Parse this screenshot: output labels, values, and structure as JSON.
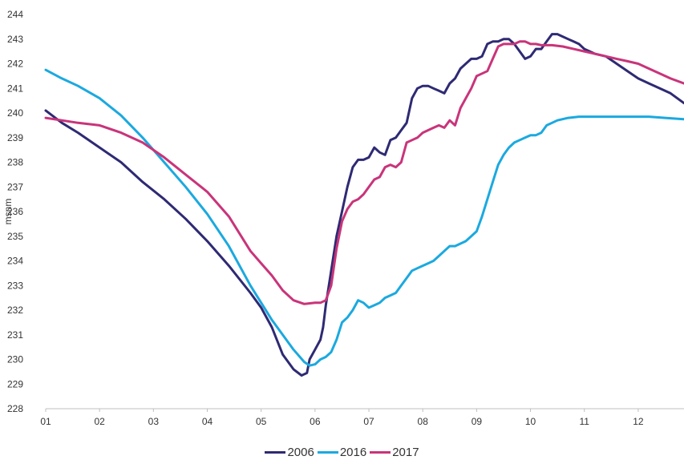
{
  "chart_data": {
    "type": "line",
    "ylabel": "msnm",
    "xlabel": "",
    "ylim": [
      228,
      244
    ],
    "xlim": [
      1,
      12.85
    ],
    "yticks": [
      "228",
      "229",
      "230",
      "231",
      "232",
      "233",
      "234",
      "235",
      "236",
      "237",
      "238",
      "239",
      "240",
      "241",
      "242",
      "243",
      "244"
    ],
    "xticks": [
      "01",
      "02",
      "03",
      "04",
      "05",
      "06",
      "07",
      "08",
      "09",
      "10",
      "11",
      "12"
    ],
    "grid": false,
    "legend_position": "bottom-center",
    "series": [
      {
        "name": "2006",
        "color": "#2e2a73",
        "x": [
          1.0,
          1.3,
          1.6,
          2.0,
          2.4,
          2.8,
          3.2,
          3.6,
          4.0,
          4.4,
          4.8,
          5.0,
          5.2,
          5.4,
          5.6,
          5.75,
          5.85,
          5.9,
          6.0,
          6.1,
          6.15,
          6.2,
          6.3,
          6.4,
          6.5,
          6.6,
          6.7,
          6.8,
          6.9,
          7.0,
          7.1,
          7.2,
          7.3,
          7.4,
          7.5,
          7.6,
          7.7,
          7.8,
          7.9,
          8.0,
          8.1,
          8.2,
          8.3,
          8.4,
          8.5,
          8.6,
          8.7,
          8.8,
          8.9,
          9.0,
          9.1,
          9.2,
          9.3,
          9.4,
          9.5,
          9.6,
          9.7,
          9.8,
          9.9,
          10.0,
          10.1,
          10.2,
          10.3,
          10.4,
          10.5,
          10.6,
          10.7,
          10.8,
          10.9,
          11.0,
          11.2,
          11.4,
          11.6,
          11.8,
          12.0,
          12.2,
          12.4,
          12.6,
          12.85
        ],
        "values": [
          240.1,
          239.6,
          239.2,
          238.6,
          238.0,
          237.2,
          236.5,
          235.7,
          234.8,
          233.8,
          232.7,
          232.1,
          231.3,
          230.2,
          229.6,
          229.35,
          229.45,
          230.0,
          230.4,
          230.8,
          231.3,
          232.2,
          233.6,
          235.0,
          236.0,
          237.0,
          237.8,
          238.1,
          238.1,
          238.2,
          238.6,
          238.4,
          238.3,
          238.9,
          239.0,
          239.3,
          239.6,
          240.6,
          241.0,
          241.1,
          241.1,
          241.0,
          240.9,
          240.8,
          241.2,
          241.4,
          241.8,
          242.0,
          242.2,
          242.2,
          242.3,
          242.8,
          242.9,
          242.9,
          243.0,
          243.0,
          242.8,
          242.5,
          242.2,
          242.3,
          242.6,
          242.6,
          242.9,
          243.2,
          243.2,
          243.1,
          243.0,
          242.9,
          242.8,
          242.6,
          242.4,
          242.3,
          242.0,
          241.7,
          241.4,
          241.2,
          241.0,
          240.8,
          240.4
        ]
      },
      {
        "name": "2016",
        "color": "#1ba9df",
        "x": [
          1.0,
          1.3,
          1.6,
          2.0,
          2.4,
          2.8,
          3.2,
          3.6,
          4.0,
          4.4,
          4.8,
          5.2,
          5.6,
          5.8,
          5.9,
          6.0,
          6.1,
          6.2,
          6.3,
          6.4,
          6.5,
          6.6,
          6.7,
          6.8,
          6.9,
          7.0,
          7.1,
          7.2,
          7.3,
          7.4,
          7.5,
          7.6,
          7.7,
          7.8,
          7.9,
          8.0,
          8.1,
          8.2,
          8.3,
          8.4,
          8.5,
          8.6,
          8.7,
          8.8,
          8.9,
          9.0,
          9.1,
          9.2,
          9.3,
          9.4,
          9.5,
          9.6,
          9.7,
          9.8,
          9.9,
          10.0,
          10.1,
          10.2,
          10.3,
          10.4,
          10.5,
          10.7,
          10.9,
          11.1,
          11.3,
          11.6,
          11.9,
          12.2,
          12.5,
          12.85
        ],
        "values": [
          241.75,
          241.4,
          241.1,
          240.6,
          239.9,
          239.0,
          238.0,
          237.0,
          235.9,
          234.6,
          233.0,
          231.6,
          230.4,
          229.9,
          229.75,
          229.8,
          230.0,
          230.1,
          230.3,
          230.8,
          231.5,
          231.7,
          232.0,
          232.4,
          232.3,
          232.1,
          232.2,
          232.3,
          232.5,
          232.6,
          232.7,
          233.0,
          233.3,
          233.6,
          233.7,
          233.8,
          233.9,
          234.0,
          234.2,
          234.4,
          234.6,
          234.6,
          234.7,
          234.8,
          235.0,
          235.2,
          235.8,
          236.5,
          237.2,
          237.9,
          238.3,
          238.6,
          238.8,
          238.9,
          239.0,
          239.1,
          239.1,
          239.2,
          239.5,
          239.6,
          239.7,
          239.8,
          239.85,
          239.85,
          239.85,
          239.85,
          239.85,
          239.85,
          239.8,
          239.75
        ]
      },
      {
        "name": "2017",
        "color": "#c9347a",
        "x": [
          1.0,
          1.3,
          1.6,
          2.0,
          2.4,
          2.8,
          3.2,
          3.6,
          4.0,
          4.4,
          4.8,
          5.0,
          5.2,
          5.4,
          5.6,
          5.8,
          6.0,
          6.1,
          6.2,
          6.3,
          6.4,
          6.5,
          6.6,
          6.7,
          6.8,
          6.9,
          7.0,
          7.1,
          7.2,
          7.3,
          7.4,
          7.5,
          7.6,
          7.7,
          7.8,
          7.9,
          8.0,
          8.1,
          8.2,
          8.3,
          8.4,
          8.5,
          8.6,
          8.7,
          8.8,
          8.9,
          9.0,
          9.1,
          9.2,
          9.3,
          9.4,
          9.5,
          9.6,
          9.7,
          9.8,
          9.9,
          10.0,
          10.1,
          10.2,
          10.4,
          10.6,
          10.8,
          11.0,
          11.2,
          11.4,
          11.6,
          11.8,
          12.0,
          12.2,
          12.4,
          12.6,
          12.85
        ],
        "values": [
          239.8,
          239.7,
          239.6,
          239.5,
          239.2,
          238.8,
          238.2,
          237.5,
          236.8,
          235.8,
          234.4,
          233.9,
          233.4,
          232.8,
          232.4,
          232.25,
          232.3,
          232.3,
          232.4,
          233.0,
          234.5,
          235.6,
          236.1,
          236.4,
          236.5,
          236.7,
          237.0,
          237.3,
          237.4,
          237.8,
          237.9,
          237.8,
          238.0,
          238.8,
          238.9,
          239.0,
          239.2,
          239.3,
          239.4,
          239.5,
          239.4,
          239.7,
          239.5,
          240.2,
          240.6,
          241.0,
          241.5,
          241.6,
          241.7,
          242.2,
          242.7,
          242.8,
          242.8,
          242.8,
          242.9,
          242.9,
          242.8,
          242.8,
          242.75,
          242.75,
          242.7,
          242.6,
          242.5,
          242.4,
          242.3,
          242.2,
          242.1,
          242.0,
          241.8,
          241.6,
          241.4,
          241.2
        ]
      }
    ]
  }
}
